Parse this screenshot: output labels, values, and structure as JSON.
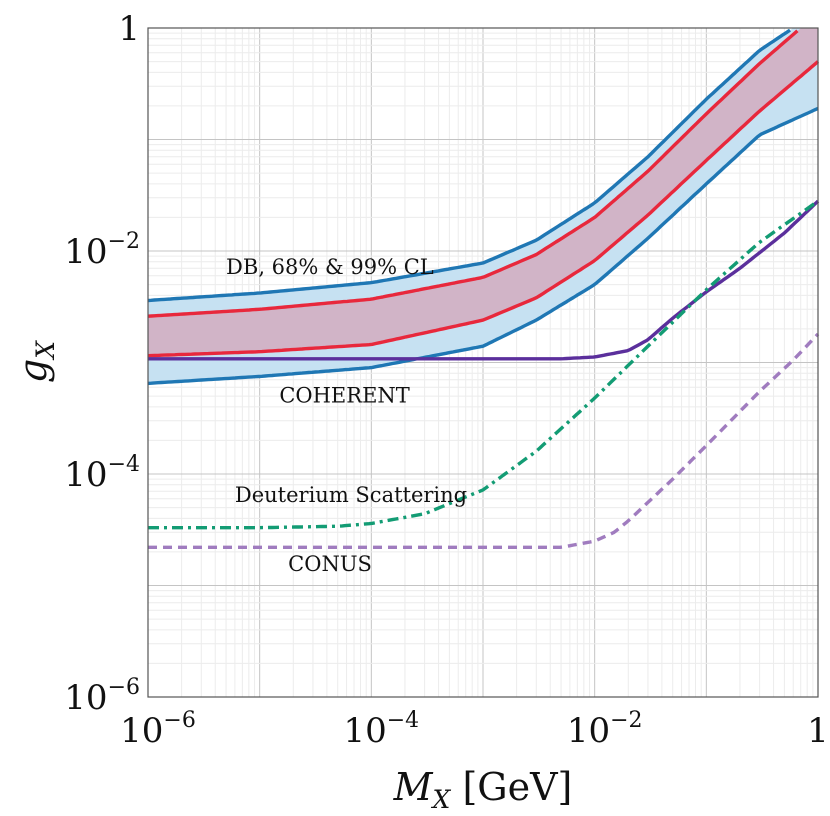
{
  "chart_data": {
    "type": "line",
    "title": "",
    "xlabel": "M_X [GeV]",
    "ylabel": "g_X",
    "xscale": "log",
    "yscale": "log",
    "xlim": [
      1e-06,
      1
    ],
    "ylim": [
      1e-06,
      1
    ],
    "grid": true,
    "x_ticks": [
      {
        "value": 1e-06,
        "base": "10",
        "exp": "−6"
      },
      {
        "value": 0.0001,
        "base": "10",
        "exp": "−4"
      },
      {
        "value": 0.01,
        "base": "10",
        "exp": "−2"
      },
      {
        "value": 1,
        "base": "1",
        "exp": ""
      }
    ],
    "y_ticks": [
      {
        "value": 1e-06,
        "base": "10",
        "exp": "−6"
      },
      {
        "value": 0.0001,
        "base": "10",
        "exp": "−4"
      },
      {
        "value": 0.01,
        "base": "10",
        "exp": "−2"
      },
      {
        "value": 1,
        "base": "1",
        "exp": ""
      }
    ],
    "series": [
      {
        "name": "DB 99% CL upper",
        "color": "#1f77b4",
        "style": "solid",
        "x": [
          1e-06,
          1e-05,
          0.0001,
          0.001,
          0.003,
          0.01,
          0.03,
          0.1,
          0.3,
          0.6
        ],
        "y": [
          0.0036,
          0.0042,
          0.0052,
          0.0078,
          0.0125,
          0.027,
          0.07,
          0.23,
          0.63,
          1.0
        ]
      },
      {
        "name": "DB 68% CL upper",
        "color": "#e8283c",
        "style": "solid",
        "x": [
          1e-06,
          1e-05,
          0.0001,
          0.001,
          0.003,
          0.01,
          0.03,
          0.1,
          0.3,
          0.7
        ],
        "y": [
          0.0026,
          0.003,
          0.0037,
          0.0058,
          0.0093,
          0.02,
          0.052,
          0.17,
          0.48,
          1.0
        ]
      },
      {
        "name": "DB 68% CL lower",
        "color": "#e8283c",
        "style": "solid",
        "x": [
          1e-06,
          1e-05,
          0.0001,
          0.001,
          0.003,
          0.01,
          0.03,
          0.1,
          0.3,
          1.0
        ],
        "y": [
          0.00115,
          0.00125,
          0.00145,
          0.0024,
          0.0038,
          0.0082,
          0.021,
          0.065,
          0.18,
          0.5
        ]
      },
      {
        "name": "DB 99% CL lower",
        "color": "#1f77b4",
        "style": "solid",
        "x": [
          1e-06,
          1e-05,
          0.0001,
          0.001,
          0.003,
          0.01,
          0.03,
          0.1,
          0.3,
          1.0
        ],
        "y": [
          0.00065,
          0.00075,
          0.0009,
          0.0014,
          0.0024,
          0.005,
          0.013,
          0.04,
          0.11,
          0.19
        ]
      },
      {
        "name": "COHERENT",
        "color": "#5b2f9c",
        "style": "solid",
        "x": [
          1e-06,
          0.0001,
          0.001,
          0.005,
          0.01,
          0.02,
          0.03,
          0.05,
          0.1,
          0.2,
          0.5,
          1.0
        ],
        "y": [
          0.00108,
          0.00108,
          0.00108,
          0.00108,
          0.00112,
          0.00128,
          0.0016,
          0.0025,
          0.0043,
          0.007,
          0.0145,
          0.028
        ]
      },
      {
        "name": "Deuterium Scattering",
        "color": "#139c74",
        "style": "dashdot",
        "x": [
          1e-06,
          1e-05,
          5e-05,
          0.0001,
          0.0003,
          0.001,
          0.003,
          0.01,
          0.03,
          0.1,
          0.3,
          1.0
        ],
        "y": [
          3.3e-05,
          3.3e-05,
          3.4e-05,
          3.6e-05,
          4.4e-05,
          7.2e-05,
          0.00016,
          0.00048,
          0.0014,
          0.0045,
          0.012,
          0.028
        ]
      },
      {
        "name": "CONUS",
        "color": "#a07cbf",
        "style": "dashed",
        "x": [
          1e-06,
          0.0001,
          0.005,
          0.01,
          0.015,
          0.02,
          0.05,
          0.1,
          0.3,
          0.6,
          1.0
        ],
        "y": [
          2.2e-05,
          2.2e-05,
          2.2e-05,
          2.5e-05,
          3e-05,
          3.8e-05,
          9e-05,
          0.00018,
          0.00055,
          0.00105,
          0.0018
        ]
      }
    ],
    "bands": [
      {
        "name": "DB 99% CL band",
        "upper": "DB 99% CL upper",
        "lower": "DB 99% CL lower",
        "color": "#c6e1f2"
      },
      {
        "name": "DB 68% CL band",
        "upper": "DB 68% CL upper",
        "lower": "DB 68% CL lower",
        "color": "#d1b4c7"
      }
    ],
    "annotations": [
      {
        "text": "DB, 68% & 99% CL",
        "x": 5e-06,
        "y": 0.0062
      },
      {
        "text": "COHERENT",
        "x": 1.5e-05,
        "y": 0.00044
      },
      {
        "text": "Deuterium Scattering",
        "x": 6e-06,
        "y": 5.6e-05
      },
      {
        "text": "CONUS",
        "x": 1.8e-05,
        "y": 1.35e-05
      }
    ]
  }
}
